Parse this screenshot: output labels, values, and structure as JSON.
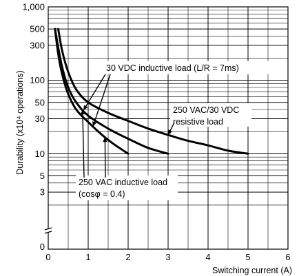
{
  "chart_data": {
    "type": "line",
    "xlabel": "Switching current (A)",
    "ylabel": "Durability (x10⁴ operations)",
    "x_ticks": [
      "0",
      "1",
      "2",
      "3",
      "4",
      "5",
      "6"
    ],
    "y_ticks": [
      {
        "value": 3,
        "label": "3"
      },
      {
        "value": 5,
        "label": "5"
      },
      {
        "value": 10,
        "label": "10"
      },
      {
        "value": 30,
        "label": "30"
      },
      {
        "value": 50,
        "label": "50"
      },
      {
        "value": 100,
        "label": "100"
      },
      {
        "value": 300,
        "label": "300"
      },
      {
        "value": 500,
        "label": "500"
      },
      {
        "value": 1000,
        "label": "1,000"
      }
    ],
    "y_zero_label": "0",
    "xlim": [
      0,
      6
    ],
    "ylim": [
      1,
      1000
    ],
    "y_scale": "log",
    "grid": true,
    "series": [
      {
        "name": "250 VAC inductive load (cosφ = 0.4)",
        "x": [
          0.17,
          0.25,
          0.35,
          0.5,
          0.7,
          1.0,
          1.3,
          1.6,
          2.0
        ],
        "y": [
          500,
          230,
          120,
          65,
          40,
          27,
          19,
          14,
          10
        ]
      },
      {
        "name": "30 VDC inductive load (L/R = 7ms)",
        "x": [
          0.17,
          0.25,
          0.35,
          0.5,
          0.7,
          1.0,
          1.5,
          2.0,
          2.5,
          3.0
        ],
        "y": [
          500,
          280,
          150,
          80,
          50,
          33,
          22,
          16,
          12,
          10
        ]
      },
      {
        "name": "250 VAC/30 VDC resistive load",
        "x": [
          0.25,
          0.35,
          0.5,
          0.7,
          1.0,
          1.5,
          2.0,
          2.5,
          3.0,
          3.5,
          4.0,
          4.5,
          5.0
        ],
        "y": [
          500,
          250,
          130,
          75,
          50,
          36,
          28,
          22,
          18,
          15,
          13,
          11,
          10
        ]
      }
    ],
    "annotations": [
      {
        "text_lines": [
          "30 VDC inductive load (L/R = 7ms)"
        ],
        "series": [
          1,
          0
        ]
      },
      {
        "text_lines": [
          "250 VAC/30 VDC",
          "resistive load"
        ],
        "series": [
          2
        ]
      },
      {
        "text_lines": [
          "250 VAC inductive load",
          "(cosφ = 0.4)"
        ],
        "series": [
          0,
          1
        ]
      }
    ]
  }
}
